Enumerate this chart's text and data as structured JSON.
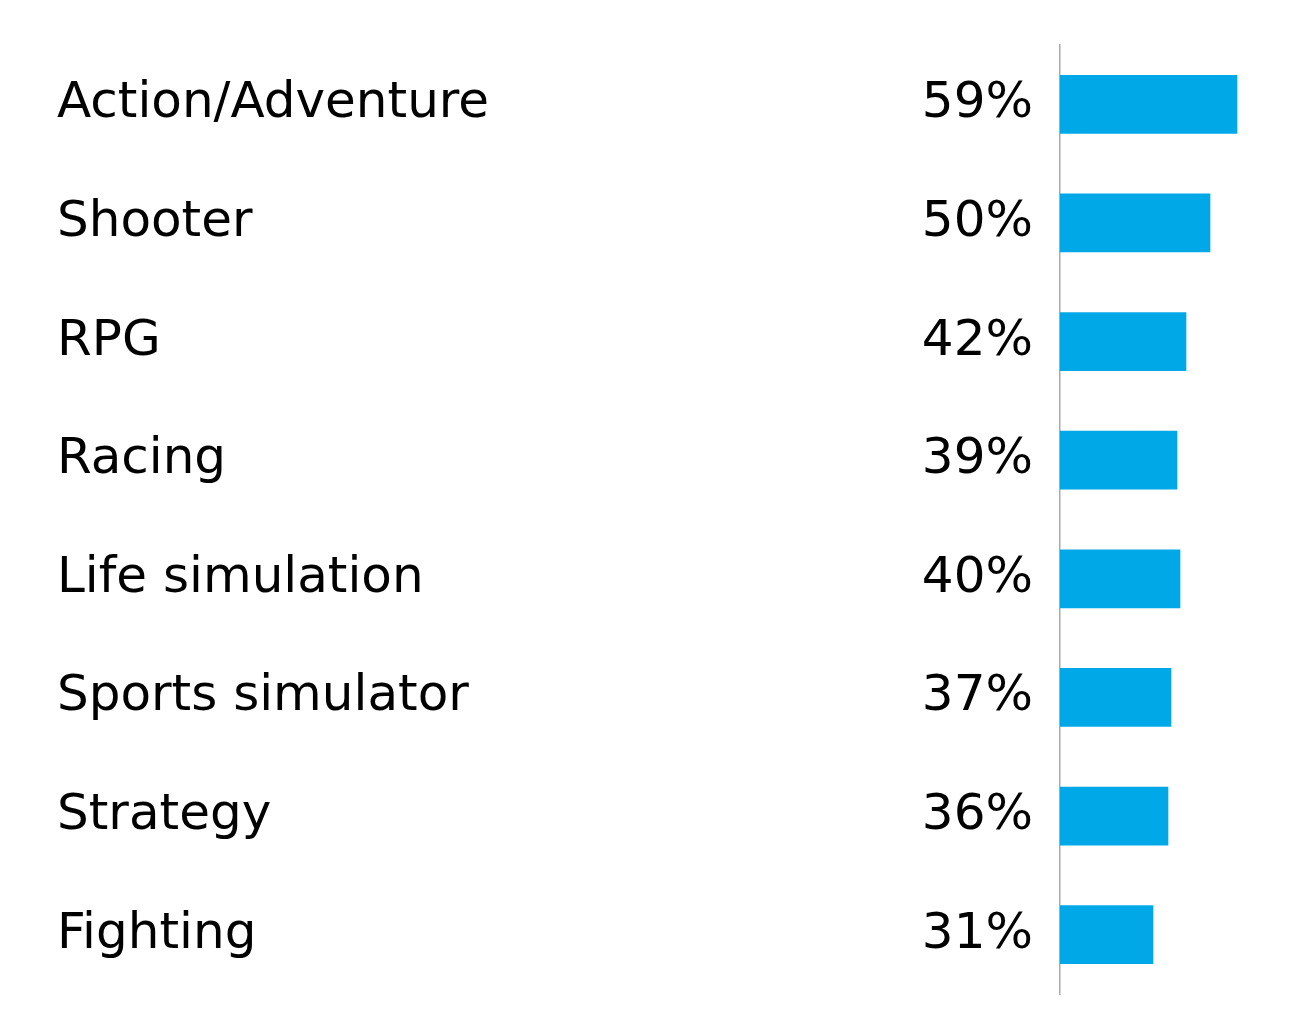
{
  "chart_data": {
    "type": "bar",
    "orientation": "horizontal",
    "categories": [
      "Action/Adventure",
      "Shooter",
      "RPG",
      "Racing",
      "Life simulation",
      "Sports simulator",
      "Strategy",
      "Fighting"
    ],
    "values": [
      59,
      50,
      42,
      39,
      40,
      37,
      36,
      31
    ],
    "value_labels": [
      "59%",
      "50%",
      "42%",
      "39%",
      "40%",
      "37%",
      "36%",
      "31%"
    ],
    "color": "#00a8e8",
    "tick_labels": "y",
    "grid": false,
    "legend": false
  }
}
